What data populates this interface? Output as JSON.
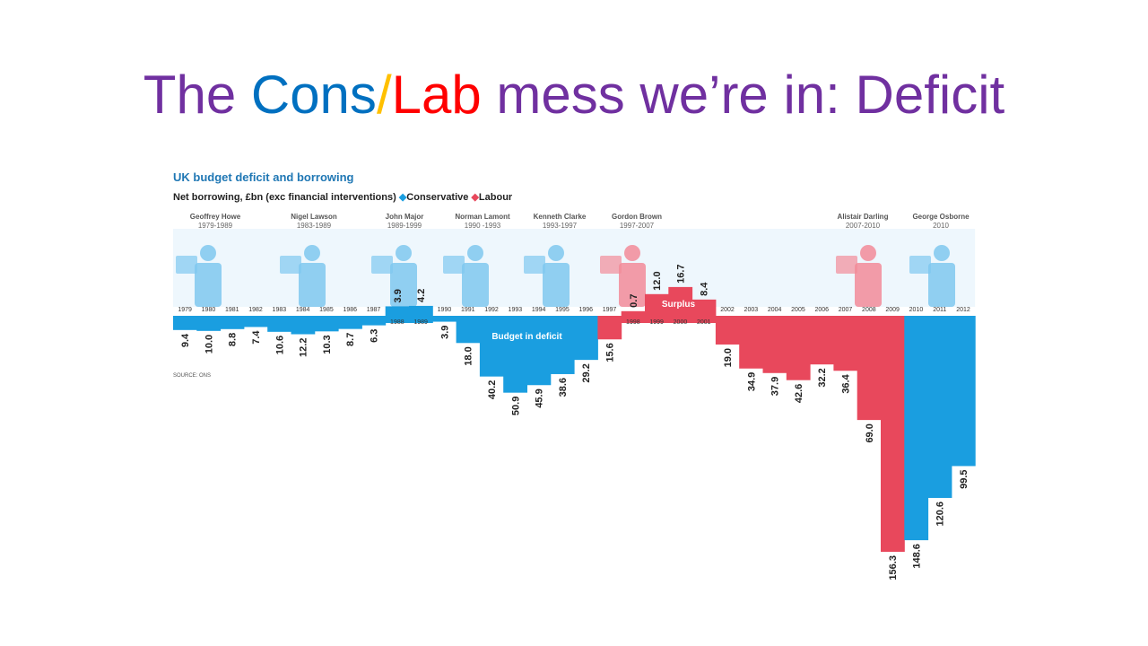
{
  "slide": {
    "title_parts": [
      {
        "text": "The ",
        "color": "#7030a0"
      },
      {
        "text": "Cons",
        "color": "#0070c0"
      },
      {
        "text": "/",
        "color": "#ffc000"
      },
      {
        "text": "Lab",
        "color": "#ff0000"
      },
      {
        "text": " mess we’re in: Deficit",
        "color": "#7030a0"
      }
    ]
  },
  "chart_data": {
    "type": "bar",
    "title": "UK budget deficit and borrowing",
    "subtitle": "Net borrowing, £bn (exc financial interventions)",
    "legend": [
      {
        "name": "Conservative",
        "color": "#1a9ee0",
        "marker": "◆"
      },
      {
        "name": "Labour",
        "color": "#e8485c",
        "marker": "◆"
      }
    ],
    "legend_placement": "top-left",
    "surplus_label": "Surplus",
    "deficit_label": "Budget in deficit",
    "source": "SOURCE: ONS",
    "grid": false,
    "categories": [
      "1979",
      "1980",
      "1981",
      "1982",
      "1983",
      "1984",
      "1985",
      "1986",
      "1987",
      "1988",
      "1989",
      "1990",
      "1991",
      "1992",
      "1993",
      "1994",
      "1995",
      "1996",
      "1997",
      "1998",
      "1999",
      "2000",
      "2001",
      "2002",
      "2003",
      "2004",
      "2005",
      "2006",
      "2007",
      "2008",
      "2009",
      "2010",
      "2011",
      "2012"
    ],
    "values": [
      -9.4,
      -10.0,
      -8.8,
      -7.4,
      -10.6,
      -12.2,
      -10.3,
      -8.7,
      -6.3,
      3.9,
      4.2,
      -3.9,
      -18.0,
      -40.2,
      -50.9,
      -45.9,
      -38.6,
      -29.2,
      -15.6,
      0.7,
      12.0,
      16.7,
      8.4,
      -19.0,
      -34.9,
      -37.9,
      -42.6,
      -32.2,
      -36.4,
      -69.0,
      -156.3,
      -148.6,
      -120.6,
      -99.5
    ],
    "value_labels": [
      "9.4",
      "10.0",
      "8.8",
      "7.4",
      "10.6",
      "12.2",
      "10.3",
      "8.7",
      "6.3",
      "3.9",
      "4.2",
      "3.9",
      "18.0",
      "40.2",
      "50.9",
      "45.9",
      "38.6",
      "29.2",
      "15.6",
      "0.7",
      "12.0",
      "16.7",
      "8.4",
      "19.0",
      "34.9",
      "37.9",
      "42.6",
      "32.2",
      "36.4",
      "69.0",
      "156.3",
      "148.6",
      "120.6",
      "99.5"
    ],
    "party": [
      "Conservative",
      "Conservative",
      "Conservative",
      "Conservative",
      "Conservative",
      "Conservative",
      "Conservative",
      "Conservative",
      "Conservative",
      "Conservative",
      "Conservative",
      "Conservative",
      "Conservative",
      "Conservative",
      "Conservative",
      "Conservative",
      "Conservative",
      "Conservative",
      "Labour",
      "Labour",
      "Labour",
      "Labour",
      "Labour",
      "Labour",
      "Labour",
      "Labour",
      "Labour",
      "Labour",
      "Labour",
      "Labour",
      "Labour",
      "Conservative",
      "Conservative",
      "Conservative"
    ],
    "chancellors": [
      {
        "name": "Geoffrey Howe",
        "years": "1979-1989"
      },
      {
        "name": "Nigel Lawson",
        "years": "1983-1989"
      },
      {
        "name": "John Major",
        "years": "1989-1999"
      },
      {
        "name": "Norman Lamont",
        "years": "1990 -1993"
      },
      {
        "name": "Kenneth Clarke",
        "years": "1993-1997"
      },
      {
        "name": "Gordon Brown",
        "years": "1997-2007"
      },
      {
        "name": "Alistair Darling",
        "years": "2007-2010"
      },
      {
        "name": "George Osborne",
        "years": "2010"
      }
    ]
  }
}
